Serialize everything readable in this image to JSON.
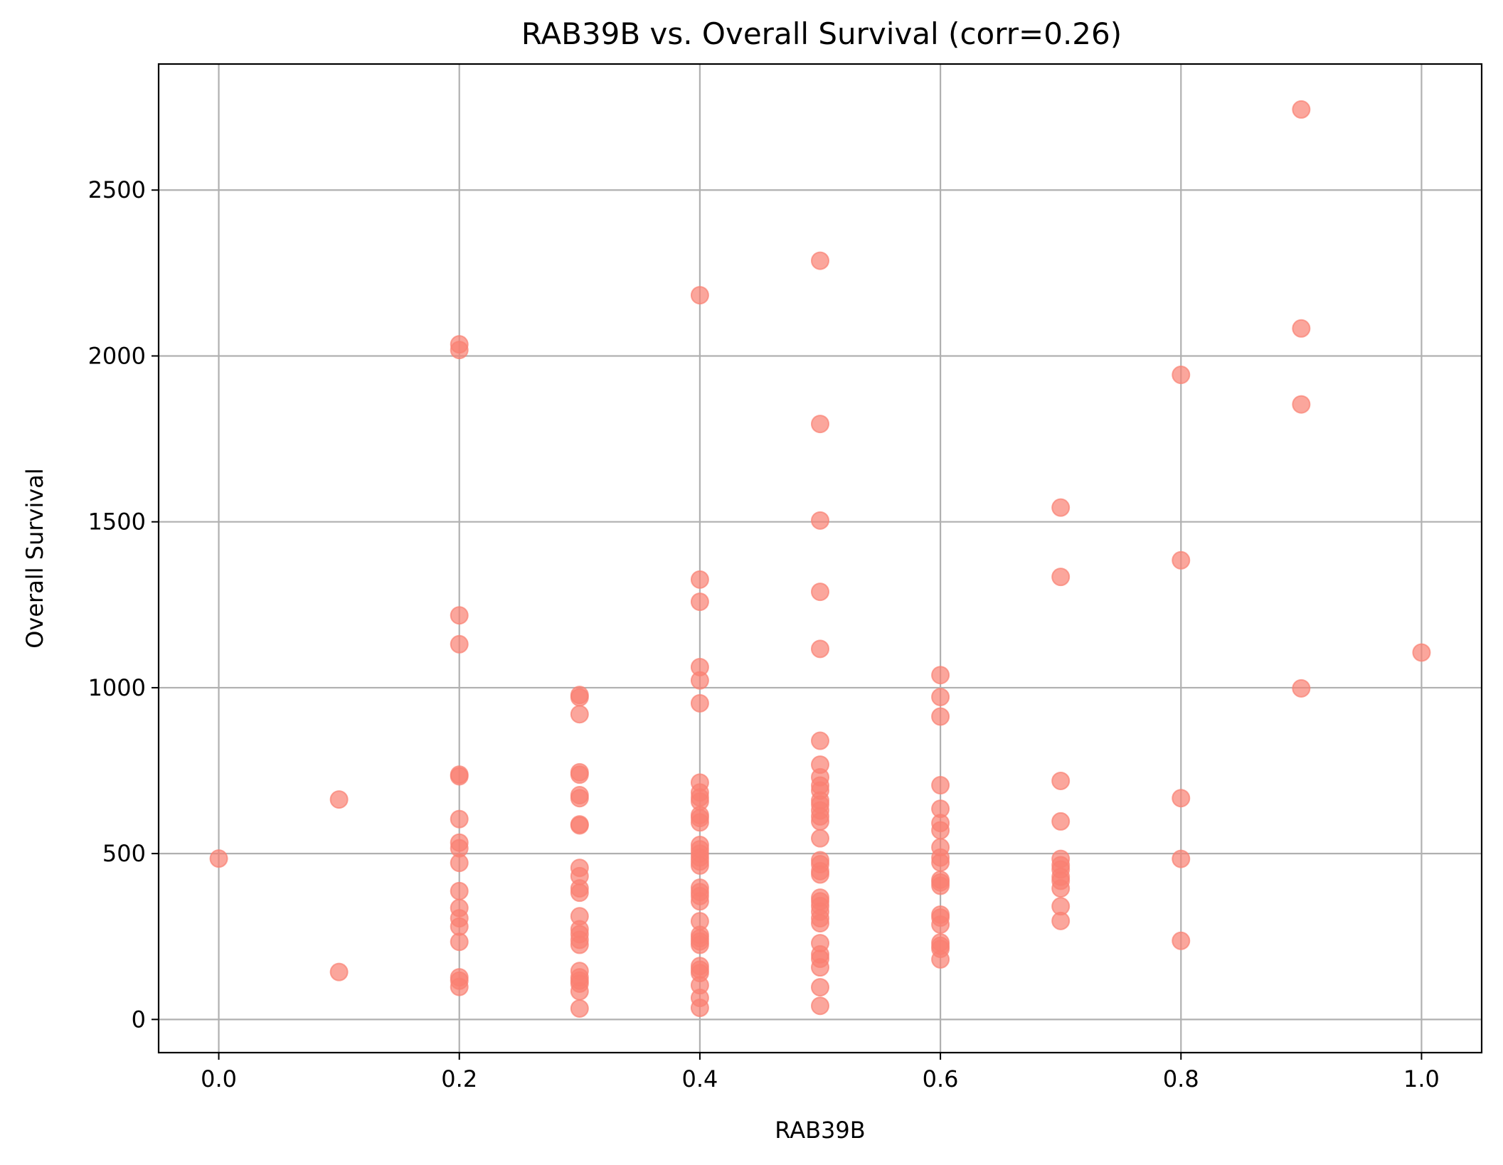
{
  "chart_data": {
    "type": "scatter",
    "title": "RAB39B vs. Overall Survival (corr=0.26)",
    "xlabel": "RAB39B",
    "ylabel": "Overall Survival",
    "xlim": [
      -0.05,
      1.05
    ],
    "ylim": [
      -100,
      2880
    ],
    "xticks": [
      0.0,
      0.2,
      0.4,
      0.6,
      0.8,
      1.0
    ],
    "xtick_labels": [
      "0.0",
      "0.2",
      "0.4",
      "0.6",
      "0.8",
      "1.0"
    ],
    "yticks": [
      0,
      500,
      1000,
      1500,
      2000,
      2500
    ],
    "ytick_labels": [
      "0",
      "500",
      "1000",
      "1500",
      "2000",
      "2500"
    ],
    "grid": true,
    "marker_color": "#fa8072",
    "marker_alpha": 0.7,
    "points": [
      {
        "x": 0.0,
        "y": 485
      },
      {
        "x": 0.1,
        "y": 663
      },
      {
        "x": 0.1,
        "y": 143
      },
      {
        "x": 0.2,
        "y": 2035
      },
      {
        "x": 0.2,
        "y": 2018
      },
      {
        "x": 0.2,
        "y": 1218
      },
      {
        "x": 0.2,
        "y": 1131
      },
      {
        "x": 0.2,
        "y": 738
      },
      {
        "x": 0.2,
        "y": 733
      },
      {
        "x": 0.2,
        "y": 604
      },
      {
        "x": 0.2,
        "y": 533
      },
      {
        "x": 0.2,
        "y": 516
      },
      {
        "x": 0.2,
        "y": 472
      },
      {
        "x": 0.2,
        "y": 387
      },
      {
        "x": 0.2,
        "y": 336
      },
      {
        "x": 0.2,
        "y": 305
      },
      {
        "x": 0.2,
        "y": 280
      },
      {
        "x": 0.2,
        "y": 234
      },
      {
        "x": 0.2,
        "y": 127
      },
      {
        "x": 0.2,
        "y": 117
      },
      {
        "x": 0.2,
        "y": 98
      },
      {
        "x": 0.3,
        "y": 978
      },
      {
        "x": 0.3,
        "y": 971
      },
      {
        "x": 0.3,
        "y": 920
      },
      {
        "x": 0.3,
        "y": 745
      },
      {
        "x": 0.3,
        "y": 738
      },
      {
        "x": 0.3,
        "y": 676
      },
      {
        "x": 0.3,
        "y": 667
      },
      {
        "x": 0.3,
        "y": 588
      },
      {
        "x": 0.3,
        "y": 585
      },
      {
        "x": 0.3,
        "y": 457
      },
      {
        "x": 0.3,
        "y": 432
      },
      {
        "x": 0.3,
        "y": 395
      },
      {
        "x": 0.3,
        "y": 382
      },
      {
        "x": 0.3,
        "y": 311
      },
      {
        "x": 0.3,
        "y": 272
      },
      {
        "x": 0.3,
        "y": 257
      },
      {
        "x": 0.3,
        "y": 240
      },
      {
        "x": 0.3,
        "y": 225
      },
      {
        "x": 0.3,
        "y": 146
      },
      {
        "x": 0.3,
        "y": 127
      },
      {
        "x": 0.3,
        "y": 117
      },
      {
        "x": 0.3,
        "y": 108
      },
      {
        "x": 0.3,
        "y": 85
      },
      {
        "x": 0.3,
        "y": 33
      },
      {
        "x": 0.4,
        "y": 2183
      },
      {
        "x": 0.4,
        "y": 1326
      },
      {
        "x": 0.4,
        "y": 1259
      },
      {
        "x": 0.4,
        "y": 1062
      },
      {
        "x": 0.4,
        "y": 1022
      },
      {
        "x": 0.4,
        "y": 953
      },
      {
        "x": 0.4,
        "y": 714
      },
      {
        "x": 0.4,
        "y": 684
      },
      {
        "x": 0.4,
        "y": 669
      },
      {
        "x": 0.4,
        "y": 657
      },
      {
        "x": 0.4,
        "y": 616
      },
      {
        "x": 0.4,
        "y": 607
      },
      {
        "x": 0.4,
        "y": 594
      },
      {
        "x": 0.4,
        "y": 526
      },
      {
        "x": 0.4,
        "y": 513
      },
      {
        "x": 0.4,
        "y": 500
      },
      {
        "x": 0.4,
        "y": 488
      },
      {
        "x": 0.4,
        "y": 476
      },
      {
        "x": 0.4,
        "y": 464
      },
      {
        "x": 0.4,
        "y": 397
      },
      {
        "x": 0.4,
        "y": 384
      },
      {
        "x": 0.4,
        "y": 372
      },
      {
        "x": 0.4,
        "y": 356
      },
      {
        "x": 0.4,
        "y": 296
      },
      {
        "x": 0.4,
        "y": 255
      },
      {
        "x": 0.4,
        "y": 245
      },
      {
        "x": 0.4,
        "y": 235
      },
      {
        "x": 0.4,
        "y": 225
      },
      {
        "x": 0.4,
        "y": 161
      },
      {
        "x": 0.4,
        "y": 150
      },
      {
        "x": 0.4,
        "y": 140
      },
      {
        "x": 0.4,
        "y": 103
      },
      {
        "x": 0.4,
        "y": 65
      },
      {
        "x": 0.4,
        "y": 35
      },
      {
        "x": 0.5,
        "y": 2287
      },
      {
        "x": 0.5,
        "y": 1795
      },
      {
        "x": 0.5,
        "y": 1504
      },
      {
        "x": 0.5,
        "y": 1289
      },
      {
        "x": 0.5,
        "y": 1117
      },
      {
        "x": 0.5,
        "y": 840
      },
      {
        "x": 0.5,
        "y": 768
      },
      {
        "x": 0.5,
        "y": 730
      },
      {
        "x": 0.5,
        "y": 705
      },
      {
        "x": 0.5,
        "y": 690
      },
      {
        "x": 0.5,
        "y": 660
      },
      {
        "x": 0.5,
        "y": 648
      },
      {
        "x": 0.5,
        "y": 630
      },
      {
        "x": 0.5,
        "y": 612
      },
      {
        "x": 0.5,
        "y": 597
      },
      {
        "x": 0.5,
        "y": 546
      },
      {
        "x": 0.5,
        "y": 480
      },
      {
        "x": 0.5,
        "y": 468
      },
      {
        "x": 0.5,
        "y": 447
      },
      {
        "x": 0.5,
        "y": 437
      },
      {
        "x": 0.5,
        "y": 367
      },
      {
        "x": 0.5,
        "y": 356
      },
      {
        "x": 0.5,
        "y": 342
      },
      {
        "x": 0.5,
        "y": 325
      },
      {
        "x": 0.5,
        "y": 305
      },
      {
        "x": 0.5,
        "y": 290
      },
      {
        "x": 0.5,
        "y": 230
      },
      {
        "x": 0.5,
        "y": 196
      },
      {
        "x": 0.5,
        "y": 183
      },
      {
        "x": 0.5,
        "y": 157
      },
      {
        "x": 0.5,
        "y": 97
      },
      {
        "x": 0.5,
        "y": 41
      },
      {
        "x": 0.6,
        "y": 1038
      },
      {
        "x": 0.6,
        "y": 972
      },
      {
        "x": 0.6,
        "y": 913
      },
      {
        "x": 0.6,
        "y": 706
      },
      {
        "x": 0.6,
        "y": 635
      },
      {
        "x": 0.6,
        "y": 592
      },
      {
        "x": 0.6,
        "y": 570
      },
      {
        "x": 0.6,
        "y": 519
      },
      {
        "x": 0.6,
        "y": 488
      },
      {
        "x": 0.6,
        "y": 473
      },
      {
        "x": 0.6,
        "y": 421
      },
      {
        "x": 0.6,
        "y": 413
      },
      {
        "x": 0.6,
        "y": 403
      },
      {
        "x": 0.6,
        "y": 316
      },
      {
        "x": 0.6,
        "y": 307
      },
      {
        "x": 0.6,
        "y": 286
      },
      {
        "x": 0.6,
        "y": 232
      },
      {
        "x": 0.6,
        "y": 222
      },
      {
        "x": 0.6,
        "y": 213
      },
      {
        "x": 0.6,
        "y": 181
      },
      {
        "x": 0.7,
        "y": 1543
      },
      {
        "x": 0.7,
        "y": 1334
      },
      {
        "x": 0.7,
        "y": 719
      },
      {
        "x": 0.7,
        "y": 597
      },
      {
        "x": 0.7,
        "y": 484
      },
      {
        "x": 0.7,
        "y": 465
      },
      {
        "x": 0.7,
        "y": 452
      },
      {
        "x": 0.7,
        "y": 430
      },
      {
        "x": 0.7,
        "y": 418
      },
      {
        "x": 0.7,
        "y": 395
      },
      {
        "x": 0.7,
        "y": 341
      },
      {
        "x": 0.7,
        "y": 297
      },
      {
        "x": 0.8,
        "y": 1943
      },
      {
        "x": 0.8,
        "y": 1384
      },
      {
        "x": 0.8,
        "y": 667
      },
      {
        "x": 0.8,
        "y": 484
      },
      {
        "x": 0.8,
        "y": 237
      },
      {
        "x": 0.9,
        "y": 2743
      },
      {
        "x": 0.9,
        "y": 2083
      },
      {
        "x": 0.9,
        "y": 1854
      },
      {
        "x": 0.9,
        "y": 998
      },
      {
        "x": 1.0,
        "y": 1106
      }
    ]
  }
}
